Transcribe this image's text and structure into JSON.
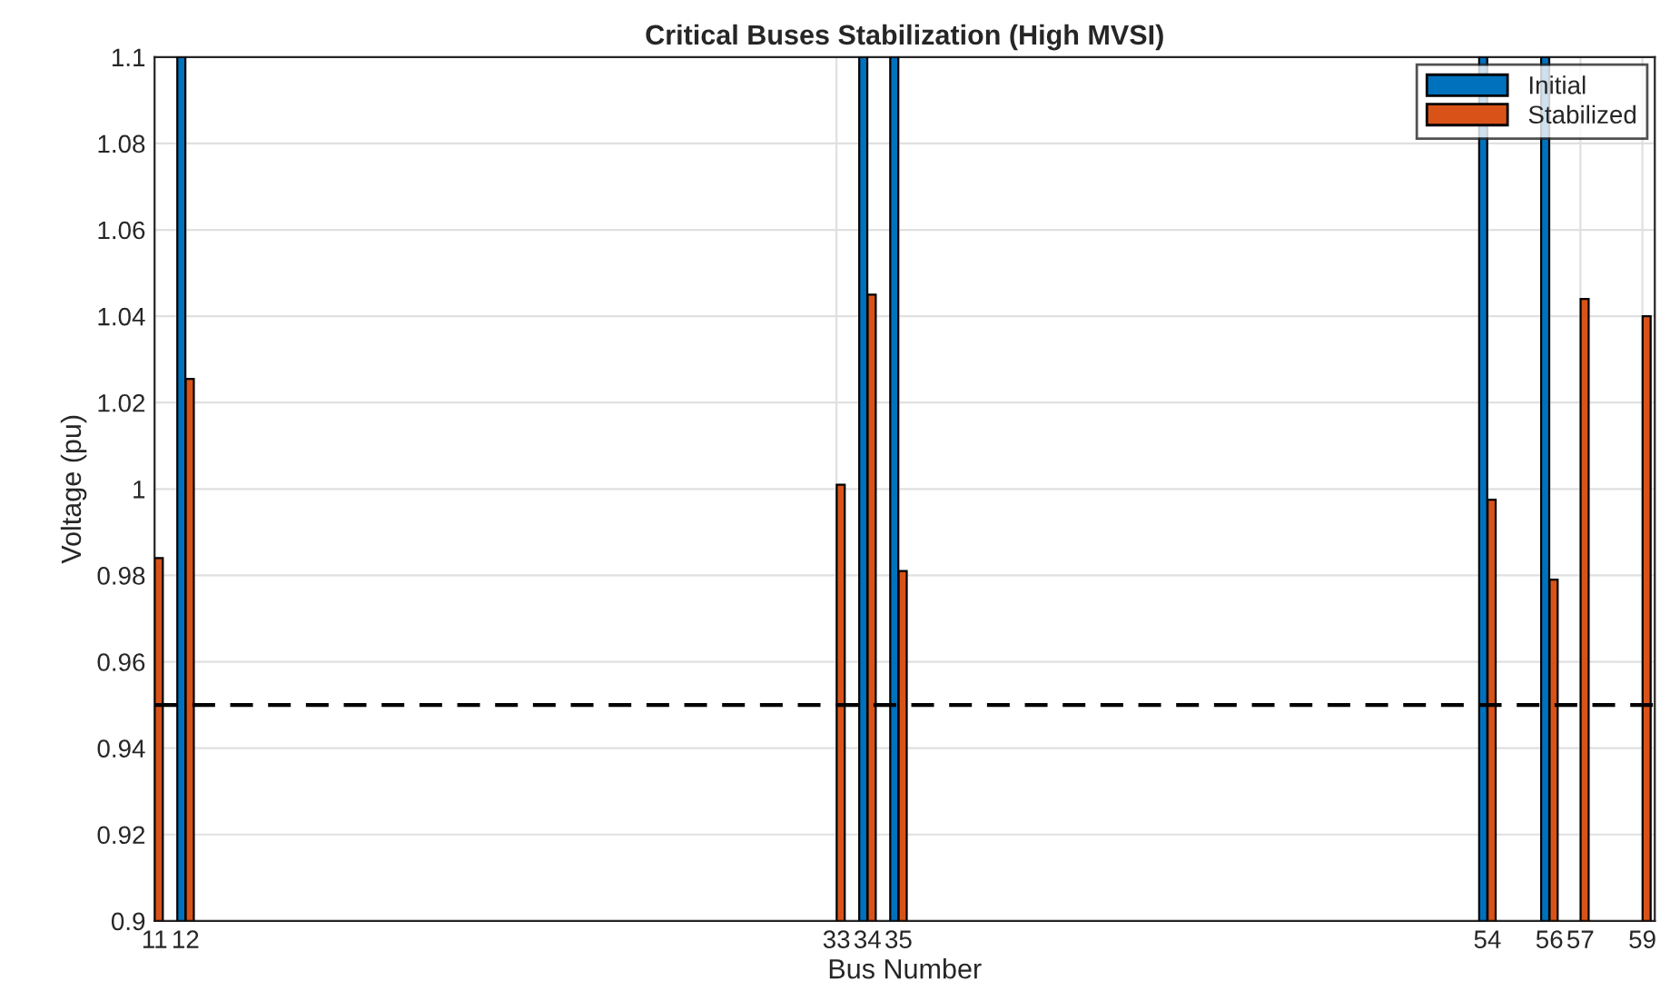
{
  "chart_data": {
    "type": "bar",
    "title": "Critical Buses Stabilization (High MVSI)",
    "xlabel": "Bus Number",
    "ylabel": "Voltage (pu)",
    "x": [
      11,
      12,
      33,
      34,
      35,
      54,
      56,
      57,
      59
    ],
    "series": [
      {
        "name": "Initial",
        "color": "#0072bd",
        "values": [
          null,
          1.1,
          null,
          1.1,
          1.1,
          1.1,
          1.1,
          null,
          null
        ]
      },
      {
        "name": "Stabilized",
        "color": "#d95319",
        "values": [
          0.984,
          1.0255,
          1.001,
          1.045,
          0.981,
          0.9975,
          0.979,
          1.044,
          1.04
        ]
      }
    ],
    "xlim": [
      11,
      59.4
    ],
    "xticks": [
      11,
      12,
      33,
      34,
      35,
      54,
      56,
      57,
      59
    ],
    "ylim": [
      0.9,
      1.1
    ],
    "yticks": [
      0.9,
      0.92,
      0.94,
      0.96,
      0.98,
      1,
      1.02,
      1.04,
      1.06,
      1.08,
      1.1
    ],
    "ref_lines": [
      {
        "axis": "y",
        "value": 0.95,
        "color": "#000000",
        "line_style": "dashed"
      }
    ],
    "grid": true,
    "legend": "top right"
  }
}
